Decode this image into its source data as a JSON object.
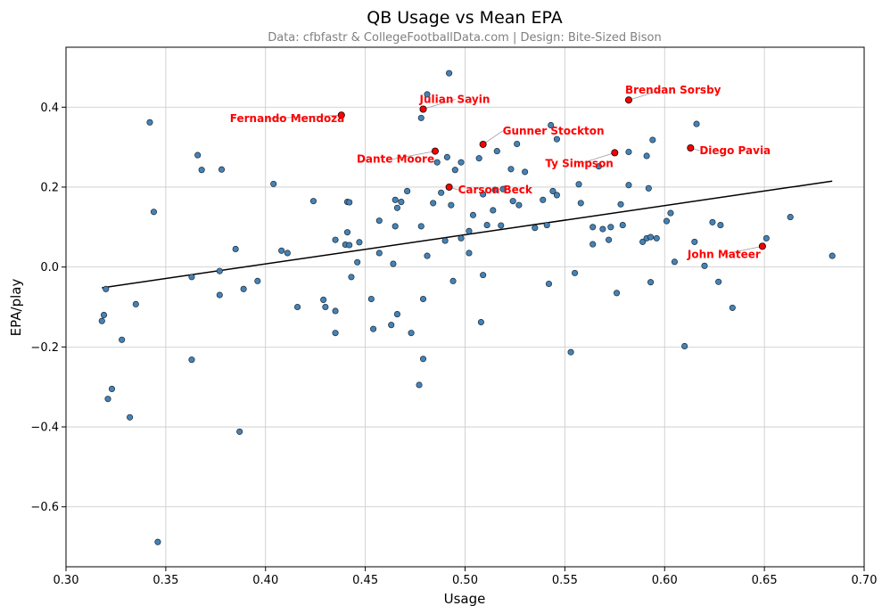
{
  "chart_data": {
    "type": "scatter",
    "title": "QB Usage vs Mean EPA",
    "subtitle": "Data: cfbfastr & CollegeFootballData.com | Design: Bite-Sized Bison",
    "xlabel": "Usage",
    "ylabel": "EPA/play",
    "xlim": [
      0.3,
      0.7
    ],
    "ylim": [
      -0.75,
      0.55
    ],
    "xticks": [
      0.3,
      0.35,
      0.4,
      0.45,
      0.5,
      0.55,
      0.6,
      0.65,
      0.7
    ],
    "yticks": [
      -0.6,
      -0.4,
      -0.2,
      0.0,
      0.2,
      0.4
    ],
    "grid": true,
    "trendline": {
      "x": [
        0.318,
        0.684
      ],
      "y": [
        -0.052,
        0.215
      ]
    },
    "colors": {
      "point": "#4682b4",
      "highlight": "#ff0000",
      "trend": "#000000"
    },
    "points": [
      [
        0.318,
        -0.135
      ],
      [
        0.319,
        -0.12
      ],
      [
        0.32,
        -0.055
      ],
      [
        0.321,
        -0.33
      ],
      [
        0.323,
        -0.305
      ],
      [
        0.328,
        -0.182
      ],
      [
        0.332,
        -0.376
      ],
      [
        0.335,
        -0.093
      ],
      [
        0.342,
        0.362
      ],
      [
        0.344,
        0.138
      ],
      [
        0.346,
        -0.688
      ],
      [
        0.363,
        -0.232
      ],
      [
        0.363,
        -0.025
      ],
      [
        0.366,
        0.28
      ],
      [
        0.368,
        0.243
      ],
      [
        0.377,
        -0.07
      ],
      [
        0.377,
        -0.01
      ],
      [
        0.378,
        0.244
      ],
      [
        0.385,
        0.045
      ],
      [
        0.387,
        -0.412
      ],
      [
        0.389,
        -0.055
      ],
      [
        0.396,
        -0.035
      ],
      [
        0.404,
        0.208
      ],
      [
        0.408,
        0.041
      ],
      [
        0.411,
        0.035
      ],
      [
        0.416,
        -0.1
      ],
      [
        0.424,
        0.165
      ],
      [
        0.429,
        -0.082
      ],
      [
        0.43,
        -0.1
      ],
      [
        0.435,
        0.068
      ],
      [
        0.435,
        -0.11
      ],
      [
        0.435,
        -0.165
      ],
      [
        0.44,
        0.056
      ],
      [
        0.441,
        0.087
      ],
      [
        0.441,
        0.163
      ],
      [
        0.442,
        0.162
      ],
      [
        0.442,
        0.055
      ],
      [
        0.443,
        -0.025
      ],
      [
        0.446,
        0.012
      ],
      [
        0.447,
        0.062
      ],
      [
        0.453,
        -0.08
      ],
      [
        0.454,
        -0.155
      ],
      [
        0.457,
        0.116
      ],
      [
        0.457,
        0.035
      ],
      [
        0.463,
        -0.145
      ],
      [
        0.464,
        0.008
      ],
      [
        0.465,
        0.102
      ],
      [
        0.465,
        0.168
      ],
      [
        0.466,
        0.148
      ],
      [
        0.466,
        -0.118
      ],
      [
        0.468,
        0.163
      ],
      [
        0.471,
        0.19
      ],
      [
        0.473,
        -0.165
      ],
      [
        0.477,
        -0.295
      ],
      [
        0.478,
        0.102
      ],
      [
        0.478,
        0.373
      ],
      [
        0.479,
        -0.23
      ],
      [
        0.479,
        -0.08
      ],
      [
        0.481,
        0.028
      ],
      [
        0.481,
        0.432
      ],
      [
        0.484,
        0.16
      ],
      [
        0.486,
        0.262
      ],
      [
        0.488,
        0.186
      ],
      [
        0.49,
        0.066
      ],
      [
        0.491,
        0.275
      ],
      [
        0.492,
        0.485
      ],
      [
        0.493,
        0.155
      ],
      [
        0.494,
        -0.035
      ],
      [
        0.495,
        0.243
      ],
      [
        0.498,
        0.262
      ],
      [
        0.498,
        0.072
      ],
      [
        0.502,
        0.09
      ],
      [
        0.502,
        0.035
      ],
      [
        0.504,
        0.13
      ],
      [
        0.507,
        0.272
      ],
      [
        0.508,
        -0.138
      ],
      [
        0.509,
        0.182
      ],
      [
        0.509,
        -0.02
      ],
      [
        0.511,
        0.105
      ],
      [
        0.514,
        0.142
      ],
      [
        0.515,
        0.193
      ],
      [
        0.516,
        0.29
      ],
      [
        0.518,
        0.104
      ],
      [
        0.519,
        0.195
      ],
      [
        0.523,
        0.245
      ],
      [
        0.524,
        0.165
      ],
      [
        0.526,
        0.308
      ],
      [
        0.527,
        0.155
      ],
      [
        0.53,
        0.238
      ],
      [
        0.535,
        0.098
      ],
      [
        0.539,
        0.168
      ],
      [
        0.541,
        0.105
      ],
      [
        0.542,
        -0.042
      ],
      [
        0.543,
        0.355
      ],
      [
        0.544,
        0.19
      ],
      [
        0.546,
        0.32
      ],
      [
        0.546,
        0.18
      ],
      [
        0.553,
        -0.213
      ],
      [
        0.555,
        -0.015
      ],
      [
        0.557,
        0.207
      ],
      [
        0.558,
        0.16
      ],
      [
        0.564,
        0.1
      ],
      [
        0.564,
        0.057
      ],
      [
        0.567,
        0.252
      ],
      [
        0.569,
        0.095
      ],
      [
        0.572,
        0.068
      ],
      [
        0.573,
        0.1
      ],
      [
        0.576,
        -0.065
      ],
      [
        0.578,
        0.157
      ],
      [
        0.579,
        0.105
      ],
      [
        0.582,
        0.288
      ],
      [
        0.582,
        0.205
      ],
      [
        0.589,
        0.063
      ],
      [
        0.591,
        0.072
      ],
      [
        0.591,
        0.278
      ],
      [
        0.592,
        0.197
      ],
      [
        0.593,
        0.075
      ],
      [
        0.593,
        -0.038
      ],
      [
        0.594,
        0.318
      ],
      [
        0.596,
        0.072
      ],
      [
        0.601,
        0.115
      ],
      [
        0.603,
        0.135
      ],
      [
        0.605,
        0.013
      ],
      [
        0.61,
        -0.198
      ],
      [
        0.615,
        0.063
      ],
      [
        0.616,
        0.358
      ],
      [
        0.62,
        0.003
      ],
      [
        0.624,
        0.112
      ],
      [
        0.627,
        -0.037
      ],
      [
        0.628,
        0.105
      ],
      [
        0.634,
        -0.102
      ],
      [
        0.651,
        0.072
      ],
      [
        0.663,
        0.125
      ],
      [
        0.684,
        0.028
      ]
    ],
    "highlights": [
      {
        "name": "Fernando Mendoza",
        "x": 0.438,
        "y": 0.38
      },
      {
        "name": "Julian Sayin",
        "x": 0.479,
        "y": 0.395
      },
      {
        "name": "Brendan Sorsby",
        "x": 0.582,
        "y": 0.418
      },
      {
        "name": "Gunner Stockton",
        "x": 0.509,
        "y": 0.307
      },
      {
        "name": "Dante Moore",
        "x": 0.485,
        "y": 0.29
      },
      {
        "name": "Ty Simpson",
        "x": 0.575,
        "y": 0.286
      },
      {
        "name": "Diego Pavia",
        "x": 0.613,
        "y": 0.298
      },
      {
        "name": "Carson Beck",
        "x": 0.492,
        "y": 0.2
      },
      {
        "name": "John Mateer",
        "x": 0.649,
        "y": 0.052
      }
    ]
  }
}
